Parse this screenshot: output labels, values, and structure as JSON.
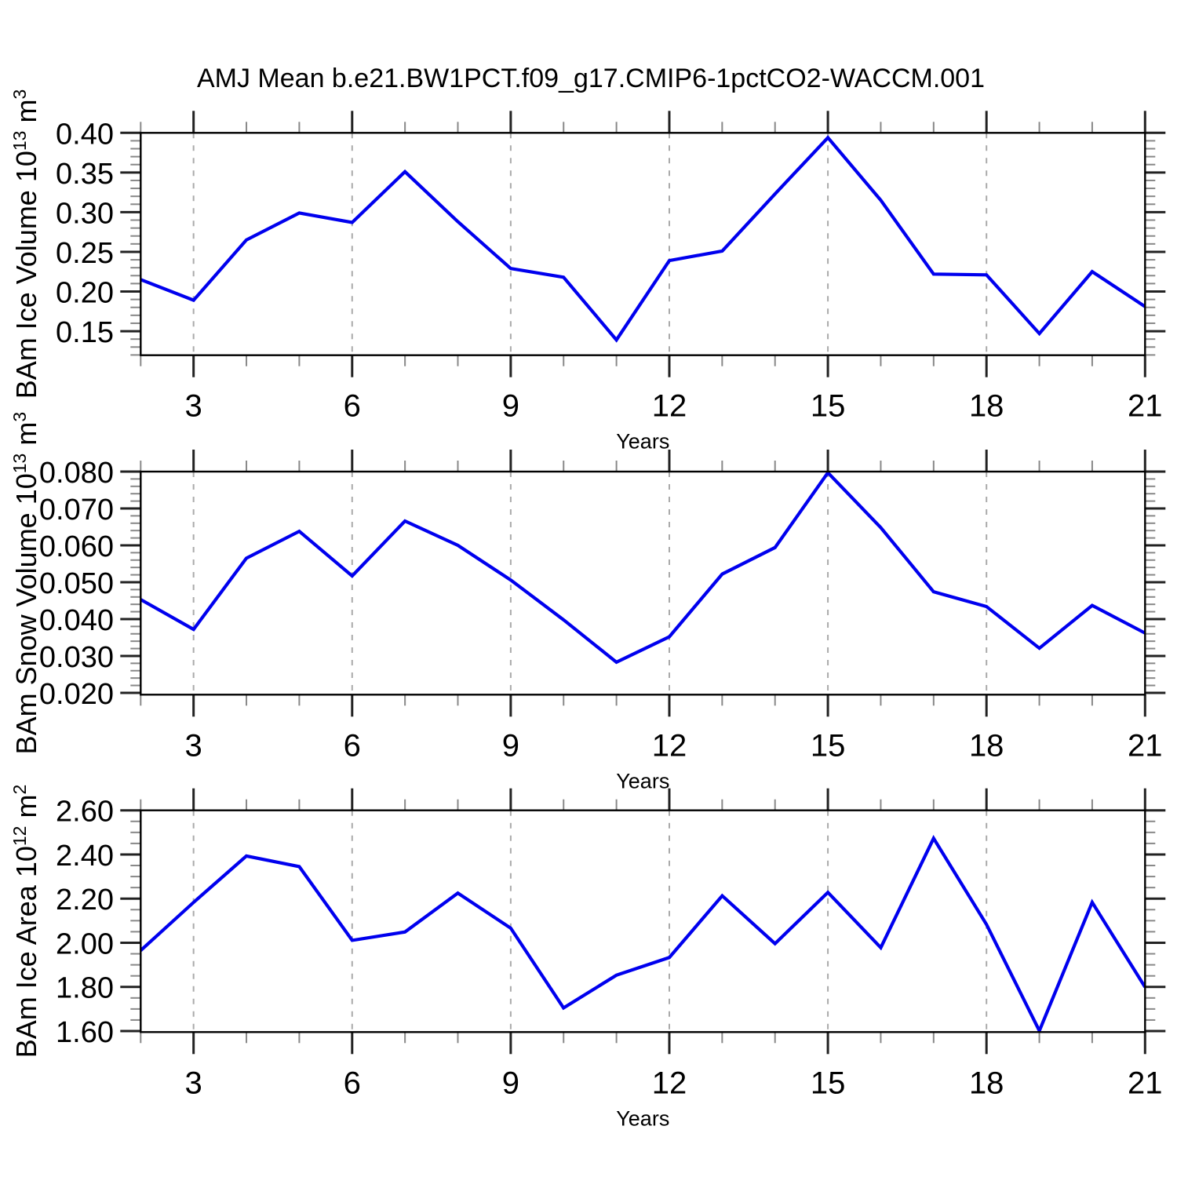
{
  "title": "AMJ Mean b.e21.BW1PCT.f09_g17.CMIP6-1pctCO2-WACCM.001",
  "style": {
    "line_color": "#0000ee",
    "grid_color": "#aaaaaa",
    "frame_color": "#000000",
    "major_tick_color": "#222222",
    "minor_tick_color": "#888888",
    "text_color": "#000000",
    "background": "#ffffff"
  },
  "chart_data": [
    {
      "type": "line",
      "id": "ice-volume",
      "ylabel_segments": [
        {
          "t": "BAm Ice Volume 10"
        },
        {
          "t": "13",
          "sup": true
        },
        {
          "t": " m"
        },
        {
          "t": "3",
          "sup": true
        }
      ],
      "xlabel": "Years",
      "x": [
        2,
        3,
        4,
        5,
        6,
        7,
        8,
        9,
        10,
        11,
        12,
        13,
        14,
        15,
        16,
        17,
        18,
        19,
        20,
        21
      ],
      "values": [
        0.215,
        0.189,
        0.265,
        0.299,
        0.287,
        0.351,
        0.288,
        0.229,
        0.218,
        0.139,
        0.239,
        0.251,
        0.323,
        0.394,
        0.315,
        0.222,
        0.221,
        0.147,
        0.225,
        0.181
      ],
      "xlim": [
        2,
        21
      ],
      "ylim": [
        0.1197,
        0.4
      ],
      "xticks_major": {
        "values": [
          3,
          6,
          9,
          12,
          15,
          18,
          21
        ],
        "labels": [
          "3",
          "6",
          "9",
          "12",
          "15",
          "18",
          "21"
        ]
      },
      "xtick_minor_step": 1,
      "gridlines_x": [
        3,
        6,
        9,
        12,
        15,
        18
      ],
      "yticks_major": {
        "values": [
          0.15,
          0.2,
          0.25,
          0.3,
          0.35,
          0.4
        ],
        "labels": [
          "0.15",
          "0.20",
          "0.25",
          "0.30",
          "0.35",
          "0.40"
        ]
      },
      "ytick_minor_step": 0.01,
      "grid": "vertical-dashed",
      "legend": "none"
    },
    {
      "type": "line",
      "id": "snow-volume",
      "ylabel_segments": [
        {
          "t": "BAm Snow Volume 10"
        },
        {
          "t": "13",
          "sup": true
        },
        {
          "t": " m"
        },
        {
          "t": "3",
          "sup": true
        }
      ],
      "xlabel": "Years",
      "x": [
        2,
        3,
        4,
        5,
        6,
        7,
        8,
        9,
        10,
        11,
        12,
        13,
        14,
        15,
        16,
        17,
        18,
        19,
        20,
        21
      ],
      "values": [
        0.0453,
        0.0372,
        0.0565,
        0.0638,
        0.0517,
        0.0666,
        0.06,
        0.0506,
        0.0398,
        0.0283,
        0.0352,
        0.0522,
        0.0594,
        0.0797,
        0.0648,
        0.0474,
        0.0434,
        0.0321,
        0.0437,
        0.0362
      ],
      "xlim": [
        2,
        21
      ],
      "ylim": [
        0.0195,
        0.08
      ],
      "xticks_major": {
        "values": [
          3,
          6,
          9,
          12,
          15,
          18,
          21
        ],
        "labels": [
          "3",
          "6",
          "9",
          "12",
          "15",
          "18",
          "21"
        ]
      },
      "xtick_minor_step": 1,
      "gridlines_x": [
        3,
        6,
        9,
        12,
        15,
        18
      ],
      "yticks_major": {
        "values": [
          0.02,
          0.03,
          0.04,
          0.05,
          0.06,
          0.07,
          0.08
        ],
        "labels": [
          "0.020",
          "0.030",
          "0.040",
          "0.050",
          "0.060",
          "0.070",
          "0.080"
        ]
      },
      "ytick_minor_step": 0.002,
      "grid": "vertical-dashed",
      "legend": "none"
    },
    {
      "type": "line",
      "id": "ice-area",
      "ylabel_segments": [
        {
          "t": "BAm Ice Area 10"
        },
        {
          "t": "12",
          "sup": true
        },
        {
          "t": " m"
        },
        {
          "t": "2",
          "sup": true
        }
      ],
      "xlabel": "Years",
      "x": [
        2,
        3,
        4,
        5,
        6,
        7,
        8,
        9,
        10,
        11,
        12,
        13,
        14,
        15,
        16,
        17,
        18,
        19,
        20,
        21
      ],
      "values": [
        1.965,
        2.183,
        2.393,
        2.345,
        2.011,
        2.049,
        2.225,
        2.066,
        1.705,
        1.853,
        1.933,
        2.213,
        1.996,
        2.228,
        1.978,
        2.473,
        2.083,
        1.601,
        2.183,
        1.799
      ],
      "xlim": [
        2,
        21
      ],
      "ylim": [
        1.5954,
        2.6
      ],
      "xticks_major": {
        "values": [
          3,
          6,
          9,
          12,
          15,
          18,
          21
        ],
        "labels": [
          "3",
          "6",
          "9",
          "12",
          "15",
          "18",
          "21"
        ]
      },
      "xtick_minor_step": 1,
      "gridlines_x": [
        3,
        6,
        9,
        12,
        15,
        18
      ],
      "yticks_major": {
        "values": [
          1.6,
          1.8,
          2.0,
          2.2,
          2.4,
          2.6
        ],
        "labels": [
          "1.60",
          "1.80",
          "2.00",
          "2.20",
          "2.40",
          "2.60"
        ]
      },
      "ytick_minor_step": 0.05,
      "grid": "vertical-dashed",
      "legend": "none"
    }
  ]
}
